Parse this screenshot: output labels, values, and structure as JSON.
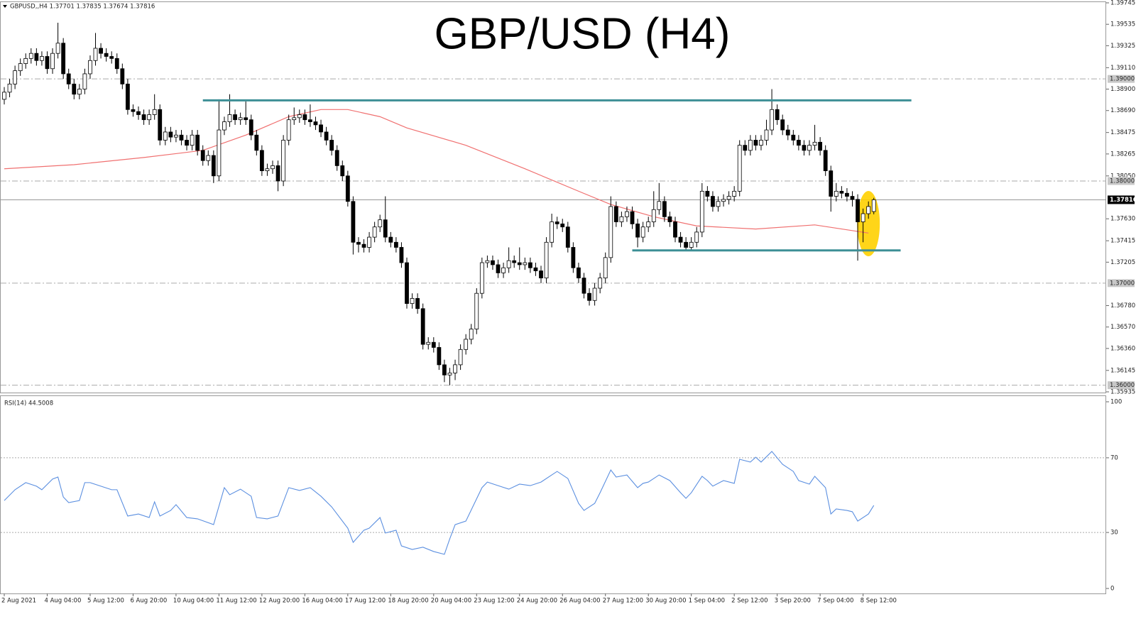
{
  "chart_data": [
    {
      "type": "candlestick",
      "header": "GBPUSD,,H4  1.37701 1.37835 1.37674 1.37816",
      "title": "GBP/USD (H4)",
      "categories": [
        "2 Aug 2021",
        null,
        null,
        null,
        null,
        null,
        null,
        null,
        "4 Aug 04:00",
        null,
        null,
        null,
        null,
        null,
        null,
        null,
        "5 Aug 12:00",
        null,
        null,
        null,
        null,
        null,
        null,
        null,
        "6 Aug 20:00",
        null,
        null,
        null,
        null,
        null,
        null,
        null,
        "10 Aug 04:00",
        null,
        null,
        null,
        null,
        null,
        null,
        null,
        "11 Aug 12:00",
        null,
        null,
        null,
        null,
        null,
        null,
        null,
        "12 Aug 20:00",
        null,
        null,
        null,
        null,
        null,
        null,
        null,
        "16 Aug 04:00",
        null,
        null,
        null,
        null,
        null,
        null,
        null,
        "17 Aug 12:00",
        null,
        null,
        null,
        null,
        null,
        null,
        null,
        "18 Aug 20:00",
        null,
        null,
        null,
        null,
        null,
        null,
        null,
        "20 Aug 04:00",
        null,
        null,
        null,
        null,
        null,
        null,
        null,
        "23 Aug 12:00",
        null,
        null,
        null,
        null,
        null,
        null,
        null,
        "24 Aug 20:00",
        null,
        null,
        null,
        null,
        null,
        null,
        null,
        "26 Aug 04:00",
        null,
        null,
        null,
        null,
        null,
        null,
        null,
        "27 Aug 12:00",
        null,
        null,
        null,
        null,
        null,
        null,
        null,
        "30 Aug 20:00",
        null,
        null,
        null,
        null,
        null,
        null,
        null,
        "1 Sep 04:00",
        null,
        null,
        null,
        null,
        null,
        null,
        null,
        "2 Sep 12:00",
        null,
        null,
        null,
        null,
        null,
        null,
        null,
        "3 Sep 20:00",
        null,
        null,
        null,
        null,
        null,
        null,
        null,
        "7 Sep 04:00",
        null,
        null,
        null,
        null,
        null,
        null,
        null,
        "8 Sep 12:00",
        null,
        null
      ],
      "open": [
        1.388,
        1.3887,
        1.3895,
        1.3908,
        1.3915,
        1.392,
        1.3925,
        1.3918,
        1.3922,
        1.391,
        1.3925,
        1.3935,
        1.3905,
        1.3895,
        1.3885,
        1.389,
        1.3905,
        1.3918,
        1.393,
        1.3925,
        1.3922,
        1.392,
        1.391,
        1.3895,
        1.387,
        1.3868,
        1.3865,
        1.386,
        1.3865,
        1.387,
        1.384,
        1.3848,
        1.3843,
        1.3845,
        1.384,
        1.3835,
        1.3845,
        1.383,
        1.382,
        1.3825,
        1.3805,
        1.385,
        1.3858,
        1.3865,
        1.386,
        1.3862,
        1.386,
        1.3845,
        1.383,
        1.381,
        1.3812,
        1.3815,
        1.38,
        1.384,
        1.386,
        1.3862,
        1.3865,
        1.386,
        1.3858,
        1.3855,
        1.3848,
        1.384,
        1.383,
        1.3815,
        1.3805,
        1.378,
        1.374,
        1.3738,
        1.3735,
        1.3745,
        1.3755,
        1.3762,
        1.3745,
        1.374,
        1.3735,
        1.372,
        1.368,
        1.3685,
        1.3675,
        1.364,
        1.3642,
        1.3637,
        1.362,
        1.361,
        1.3612,
        1.362,
        1.3635,
        1.3645,
        1.3655,
        1.369,
        1.372,
        1.3722,
        1.3718,
        1.371,
        1.3715,
        1.3722,
        1.372,
        1.3718,
        1.372,
        1.3715,
        1.3712,
        1.3705,
        1.374,
        1.376,
        1.3758,
        1.3755,
        1.3735,
        1.3715,
        1.3705,
        1.369,
        1.3683,
        1.3695,
        1.3705,
        1.3725,
        1.3775,
        1.376,
        1.3765,
        1.377,
        1.3758,
        1.3745,
        1.3755,
        1.376,
        1.3772,
        1.378,
        1.3765,
        1.376,
        1.3745,
        1.374,
        1.3735,
        1.374,
        1.375,
        1.379,
        1.3785,
        1.3775,
        1.378,
        1.3782,
        1.3785,
        1.379,
        1.3835,
        1.383,
        1.384,
        1.3835,
        1.384,
        1.385,
        1.387,
        1.386,
        1.385,
        1.3845,
        1.384,
        1.3835,
        1.383,
        1.3835,
        1.3838,
        1.383,
        1.381,
        1.3785,
        1.379,
        1.3788,
        1.3785,
        1.3782,
        1.376,
        1.3768,
        1.37701
      ],
      "high": [
        1.3892,
        1.39,
        1.3913,
        1.392,
        1.3925,
        1.393,
        1.393,
        1.3927,
        1.3927,
        1.393,
        1.3955,
        1.394,
        1.391,
        1.39,
        1.3895,
        1.391,
        1.3923,
        1.3945,
        1.3935,
        1.393,
        1.3927,
        1.3925,
        1.3915,
        1.39,
        1.3875,
        1.3873,
        1.387,
        1.387,
        1.3885,
        1.3875,
        1.3853,
        1.3853,
        1.385,
        1.385,
        1.3845,
        1.385,
        1.385,
        1.3835,
        1.383,
        1.383,
        1.388,
        1.3863,
        1.3885,
        1.387,
        1.3867,
        1.3878,
        1.3865,
        1.385,
        1.3835,
        1.3817,
        1.382,
        1.382,
        1.3845,
        1.3865,
        1.3872,
        1.387,
        1.387,
        1.3875,
        1.3863,
        1.386,
        1.3853,
        1.3845,
        1.3835,
        1.382,
        1.381,
        1.3785,
        1.3745,
        1.3743,
        1.375,
        1.376,
        1.3767,
        1.3785,
        1.375,
        1.3745,
        1.374,
        1.3725,
        1.369,
        1.369,
        1.368,
        1.3647,
        1.3647,
        1.3642,
        1.3625,
        1.3617,
        1.3625,
        1.364,
        1.365,
        1.366,
        1.3695,
        1.3725,
        1.3727,
        1.3727,
        1.3723,
        1.372,
        1.3735,
        1.3727,
        1.3735,
        1.3725,
        1.3725,
        1.372,
        1.3717,
        1.3745,
        1.3768,
        1.3765,
        1.3763,
        1.376,
        1.374,
        1.372,
        1.371,
        1.3695,
        1.37,
        1.371,
        1.373,
        1.3785,
        1.378,
        1.377,
        1.3775,
        1.3775,
        1.3763,
        1.376,
        1.3765,
        1.379,
        1.3798,
        1.3785,
        1.377,
        1.3765,
        1.375,
        1.3745,
        1.3745,
        1.3755,
        1.3798,
        1.3795,
        1.379,
        1.3785,
        1.3787,
        1.379,
        1.3795,
        1.384,
        1.384,
        1.3845,
        1.3845,
        1.3845,
        1.386,
        1.389,
        1.3875,
        1.3865,
        1.3855,
        1.385,
        1.3845,
        1.384,
        1.384,
        1.3855,
        1.3843,
        1.3835,
        1.3815,
        1.3798,
        1.3795,
        1.3793,
        1.379,
        1.3787,
        1.3773,
        1.378,
        1.37835
      ],
      "low": [
        1.3875,
        1.3882,
        1.389,
        1.3903,
        1.391,
        1.3915,
        1.3913,
        1.3913,
        1.3905,
        1.3905,
        1.392,
        1.39,
        1.389,
        1.388,
        1.388,
        1.3885,
        1.39,
        1.3913,
        1.392,
        1.3917,
        1.3915,
        1.3905,
        1.389,
        1.3865,
        1.3863,
        1.386,
        1.3855,
        1.3855,
        1.386,
        1.3835,
        1.3835,
        1.3838,
        1.3838,
        1.3835,
        1.383,
        1.383,
        1.3825,
        1.3815,
        1.3815,
        1.3798,
        1.38,
        1.3845,
        1.3853,
        1.3855,
        1.3855,
        1.3855,
        1.384,
        1.3825,
        1.3805,
        1.3805,
        1.3807,
        1.379,
        1.3795,
        1.3835,
        1.3855,
        1.3857,
        1.3855,
        1.3853,
        1.385,
        1.3843,
        1.3835,
        1.3825,
        1.381,
        1.38,
        1.3775,
        1.3728,
        1.373,
        1.373,
        1.373,
        1.374,
        1.375,
        1.374,
        1.3735,
        1.373,
        1.3715,
        1.3675,
        1.3675,
        1.367,
        1.3635,
        1.3635,
        1.3632,
        1.3615,
        1.3603,
        1.36,
        1.3605,
        1.3615,
        1.363,
        1.364,
        1.365,
        1.3685,
        1.3715,
        1.3713,
        1.3705,
        1.3705,
        1.371,
        1.3715,
        1.3713,
        1.3713,
        1.371,
        1.3707,
        1.37,
        1.37,
        1.3735,
        1.3753,
        1.375,
        1.373,
        1.371,
        1.37,
        1.3685,
        1.3678,
        1.3678,
        1.369,
        1.37,
        1.372,
        1.3755,
        1.3755,
        1.376,
        1.3753,
        1.3735,
        1.374,
        1.375,
        1.3755,
        1.3767,
        1.376,
        1.3755,
        1.374,
        1.3735,
        1.3732,
        1.3732,
        1.3735,
        1.3745,
        1.378,
        1.377,
        1.377,
        1.3775,
        1.3777,
        1.378,
        1.3785,
        1.3825,
        1.3825,
        1.383,
        1.383,
        1.3835,
        1.3845,
        1.3855,
        1.3845,
        1.384,
        1.3835,
        1.383,
        1.3825,
        1.3825,
        1.383,
        1.3825,
        1.3805,
        1.377,
        1.378,
        1.3783,
        1.378,
        1.3775,
        1.3722,
        1.374,
        1.3763,
        1.37674
      ],
      "close": [
        1.3887,
        1.3895,
        1.3908,
        1.3915,
        1.392,
        1.3925,
        1.3918,
        1.3922,
        1.391,
        1.3925,
        1.3935,
        1.3905,
        1.3895,
        1.3885,
        1.389,
        1.3905,
        1.3918,
        1.393,
        1.3925,
        1.3922,
        1.392,
        1.391,
        1.3895,
        1.387,
        1.3868,
        1.3865,
        1.386,
        1.3865,
        1.387,
        1.384,
        1.3848,
        1.3843,
        1.3845,
        1.384,
        1.3835,
        1.3845,
        1.383,
        1.382,
        1.3825,
        1.3805,
        1.385,
        1.3858,
        1.3865,
        1.386,
        1.3862,
        1.386,
        1.3845,
        1.383,
        1.381,
        1.3812,
        1.3815,
        1.38,
        1.384,
        1.386,
        1.3862,
        1.3865,
        1.386,
        1.3858,
        1.3855,
        1.3848,
        1.384,
        1.383,
        1.3815,
        1.3805,
        1.378,
        1.374,
        1.3738,
        1.3735,
        1.3745,
        1.3755,
        1.3762,
        1.3745,
        1.374,
        1.3735,
        1.372,
        1.368,
        1.3685,
        1.3675,
        1.364,
        1.3642,
        1.3637,
        1.362,
        1.361,
        1.3612,
        1.362,
        1.3635,
        1.3645,
        1.3655,
        1.369,
        1.372,
        1.3722,
        1.3718,
        1.371,
        1.3715,
        1.3722,
        1.372,
        1.3718,
        1.372,
        1.3715,
        1.3712,
        1.3705,
        1.374,
        1.376,
        1.3758,
        1.3755,
        1.3735,
        1.3715,
        1.3705,
        1.369,
        1.3683,
        1.3695,
        1.3705,
        1.3725,
        1.3775,
        1.376,
        1.3765,
        1.377,
        1.3758,
        1.3745,
        1.3755,
        1.376,
        1.3772,
        1.378,
        1.3765,
        1.376,
        1.3745,
        1.374,
        1.3735,
        1.374,
        1.375,
        1.379,
        1.3785,
        1.3775,
        1.378,
        1.3782,
        1.3785,
        1.379,
        1.3835,
        1.383,
        1.384,
        1.3835,
        1.384,
        1.385,
        1.387,
        1.386,
        1.385,
        1.3845,
        1.384,
        1.3835,
        1.383,
        1.3835,
        1.3838,
        1.383,
        1.381,
        1.3785,
        1.379,
        1.3788,
        1.3785,
        1.3782,
        1.376,
        1.3768,
        1.3775,
        1.37816
      ],
      "up_color": "#ffffff",
      "down_color": "#000000",
      "ma": {
        "color": "#f07070",
        "x": [
          0,
          13,
          26,
          37,
          45,
          53,
          59,
          64,
          70,
          75,
          86,
          97,
          107,
          113,
          121,
          129,
          140,
          151,
          156,
          161
        ],
        "values": [
          1.3812,
          1.3816,
          1.3823,
          1.383,
          1.3845,
          1.3863,
          1.387,
          1.387,
          1.3863,
          1.3852,
          1.3835,
          1.3812,
          1.379,
          1.3777,
          1.3765,
          1.3756,
          1.3753,
          1.3757,
          1.3753,
          1.3749
        ]
      },
      "hlines": [
        {
          "value": 1.3879,
          "from": 37,
          "to": 169,
          "color": "#3d8f96"
        },
        {
          "value": 1.3732,
          "from": 117,
          "to": 167,
          "color": "#3d8f96"
        }
      ],
      "ylim": [
        1.35935,
        1.39745
      ],
      "yticks": [
        {
          "value": 1.39745,
          "label": "1.39745"
        },
        {
          "value": 1.39535,
          "label": "1.39535"
        },
        {
          "value": 1.39325,
          "label": "1.39325"
        },
        {
          "value": 1.3911,
          "label": "1.39110"
        },
        {
          "value": 1.389,
          "label": "1.38900"
        },
        {
          "value": 1.3869,
          "label": "1.38690"
        },
        {
          "value": 1.38475,
          "label": "1.38475"
        },
        {
          "value": 1.38265,
          "label": "1.38265"
        },
        {
          "value": 1.3805,
          "label": "1.38050"
        },
        {
          "value": 1.3763,
          "label": "1.37630"
        },
        {
          "value": 1.37415,
          "label": "1.37415"
        },
        {
          "value": 1.37205,
          "label": "1.37205"
        },
        {
          "value": 1.3678,
          "label": "1.36780"
        },
        {
          "value": 1.3657,
          "label": "1.36570"
        },
        {
          "value": 1.3636,
          "label": "1.36360"
        },
        {
          "value": 1.36145,
          "label": "1.36145"
        },
        {
          "value": 1.35935,
          "label": "1.35935"
        }
      ],
      "levels": [
        {
          "value": 1.39,
          "label": "1.39000"
        },
        {
          "value": 1.38,
          "label": "1.38000"
        },
        {
          "value": 1.37,
          "label": "1.37000"
        },
        {
          "value": 1.36,
          "label": "1.36000"
        }
      ],
      "current_price": {
        "value": 1.37816,
        "label": "1.37816"
      }
    },
    {
      "type": "line",
      "title": "RSI(14) 44.5008",
      "color": "#5b8fe0",
      "x": [
        0,
        2,
        4,
        6,
        7,
        9,
        10,
        11,
        12,
        14,
        15,
        16,
        18,
        20,
        21,
        23,
        25,
        27,
        28,
        29,
        31,
        32,
        34,
        36,
        39,
        41,
        42,
        44,
        46,
        47,
        49,
        51,
        53,
        55,
        57,
        59,
        61,
        64,
        65,
        67,
        68,
        70,
        71,
        73,
        74,
        76,
        78,
        80,
        82,
        83,
        84,
        86,
        89,
        90,
        92,
        94,
        96,
        98,
        100,
        102,
        103,
        105,
        107,
        108,
        110,
        111,
        113,
        114,
        116,
        118,
        119,
        120,
        122,
        124,
        126,
        127,
        128,
        130,
        131,
        132,
        134,
        136,
        137,
        139,
        140,
        141,
        143,
        145,
        147,
        148,
        150,
        151,
        153,
        154,
        155,
        157,
        158,
        159,
        161,
        162
      ],
      "values": [
        47.1,
        52.9,
        56.7,
        54.8,
        52.9,
        58.6,
        59.7,
        49.0,
        46.0,
        47.1,
        56.7,
        56.7,
        54.8,
        52.9,
        52.9,
        38.8,
        39.9,
        38.0,
        46.4,
        38.8,
        41.8,
        44.9,
        38.0,
        37.3,
        34.2,
        54.0,
        50.2,
        53.2,
        49.4,
        38.0,
        37.3,
        38.8,
        54.0,
        52.5,
        54.0,
        49.4,
        43.7,
        32.3,
        24.7,
        31.2,
        32.3,
        38.0,
        29.7,
        31.2,
        22.8,
        20.9,
        22.1,
        19.8,
        18.3,
        26.6,
        34.2,
        36.1,
        54.0,
        57.0,
        55.1,
        53.2,
        55.9,
        55.1,
        57.0,
        60.8,
        62.7,
        58.9,
        45.6,
        41.8,
        45.6,
        51.3,
        63.5,
        59.7,
        60.8,
        54.0,
        56.3,
        57.0,
        60.8,
        57.8,
        51.3,
        48.3,
        51.3,
        60.1,
        57.8,
        54.8,
        57.8,
        56.3,
        69.2,
        67.7,
        70.3,
        67.7,
        73.4,
        66.5,
        62.7,
        57.8,
        55.9,
        60.1,
        54.0,
        39.9,
        42.6,
        41.8,
        41.1,
        36.1,
        39.9,
        44.5008
      ],
      "ylim": [
        0,
        100
      ],
      "yticks": [
        0,
        30,
        70,
        100
      ],
      "levels": [
        30,
        70
      ]
    }
  ]
}
